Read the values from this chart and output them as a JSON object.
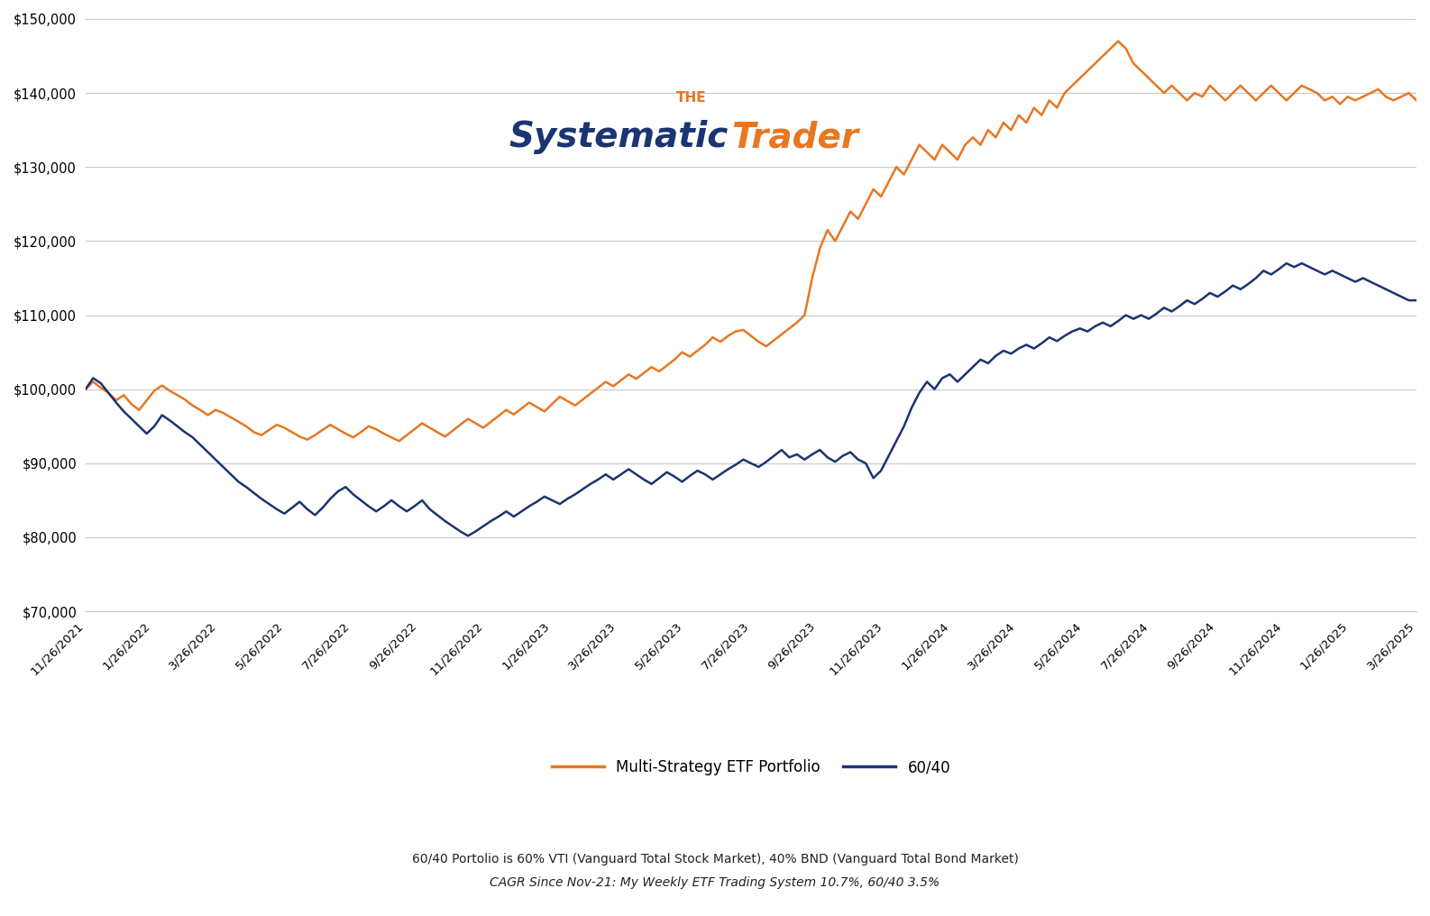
{
  "title_the": "THE",
  "title_systematic": "Systematic",
  "title_trader": "Trader",
  "title_color_the": "#E87722",
  "title_color_systematic": "#1B3472",
  "title_color_trader": "#E87722",
  "orange_color": "#E87722",
  "navy_color": "#1B3472",
  "bg_color": "#FFFFFF",
  "grid_color": "#C8C8C8",
  "ylim": [
    70000,
    150000
  ],
  "yticks": [
    70000,
    80000,
    90000,
    100000,
    110000,
    120000,
    130000,
    140000,
    150000
  ],
  "legend_label_orange": "Multi-Strategy ETF Portfolio",
  "legend_label_navy": "60/40",
  "footnote1": "60/40 Portolio is 60% VTI (Vanguard Total Stock Market), 40% BND (Vanguard Total Bond Market)",
  "footnote2": "CAGR Since Nov-21: My Weekly ETF Trading System 10.7%, 60/40 3.5%",
  "xtick_labels": [
    "11/26/2021",
    "1/26/2022",
    "3/26/2022",
    "5/26/2022",
    "7/26/2022",
    "9/26/2022",
    "11/26/2022",
    "1/26/2023",
    "3/26/2023",
    "5/26/2023",
    "7/26/2023",
    "9/26/2023",
    "11/26/2023",
    "1/26/2024",
    "3/26/2024",
    "5/26/2024",
    "7/26/2024",
    "9/26/2024",
    "11/26/2024",
    "1/26/2025",
    "3/26/2025"
  ],
  "orange_data": [
    100000,
    101000,
    100200,
    99500,
    98500,
    99200,
    98000,
    97200,
    98500,
    99800,
    100500,
    99800,
    99200,
    98600,
    97800,
    97200,
    96500,
    97200,
    96800,
    96200,
    95600,
    95000,
    94200,
    93800,
    94500,
    95200,
    94800,
    94200,
    93600,
    93200,
    93800,
    94500,
    95200,
    94600,
    94000,
    93500,
    94200,
    95000,
    94600,
    94000,
    93500,
    93000,
    93800,
    94600,
    95400,
    94800,
    94200,
    93600,
    94400,
    95200,
    96000,
    95400,
    94800,
    95600,
    96400,
    97200,
    96600,
    97400,
    98200,
    97600,
    97000,
    98000,
    99000,
    98400,
    97800,
    98600,
    99400,
    100200,
    101000,
    100400,
    101200,
    102000,
    101400,
    102200,
    103000,
    102400,
    103200,
    104000,
    105000,
    104400,
    105200,
    106000,
    107000,
    106400,
    107200,
    107800,
    108000,
    107200,
    106400,
    105800,
    106600,
    107400,
    108200,
    109000,
    110000,
    115000,
    119000,
    121500,
    120000,
    122000,
    124000,
    123000,
    125000,
    127000,
    126000,
    128000,
    130000,
    129000,
    131000,
    133000,
    132000,
    131000,
    133000,
    132000,
    131000,
    133000,
    134000,
    133000,
    135000,
    134000,
    136000,
    135000,
    137000,
    136000,
    138000,
    137000,
    139000,
    138000,
    140000,
    141000,
    142000,
    143000,
    144000,
    145000,
    146000,
    147000,
    146000,
    144000,
    143000,
    142000,
    141000,
    140000,
    141000,
    140000,
    139000,
    140000,
    139500,
    141000,
    140000,
    139000,
    140000,
    141000,
    140000,
    139000,
    140000,
    141000,
    140000,
    139000,
    140000,
    141000,
    140500,
    140000,
    139000,
    139500,
    138500,
    139500,
    139000,
    139500,
    140000,
    140500,
    139500,
    139000,
    139500,
    140000,
    139000
  ],
  "navy_data": [
    100000,
    101500,
    100800,
    99500,
    98200,
    97000,
    96000,
    95000,
    94000,
    95000,
    96500,
    95800,
    95000,
    94200,
    93500,
    92500,
    91500,
    90500,
    89500,
    88500,
    87500,
    86800,
    86000,
    85200,
    84500,
    83800,
    83200,
    84000,
    84800,
    83800,
    83000,
    84000,
    85200,
    86200,
    86800,
    85800,
    85000,
    84200,
    83500,
    84200,
    85000,
    84200,
    83500,
    84200,
    85000,
    83800,
    83000,
    82200,
    81500,
    80800,
    80200,
    80800,
    81500,
    82200,
    82800,
    83500,
    82800,
    83500,
    84200,
    84800,
    85500,
    85000,
    84500,
    85200,
    85800,
    86500,
    87200,
    87800,
    88500,
    87800,
    88500,
    89200,
    88500,
    87800,
    87200,
    88000,
    88800,
    88200,
    87500,
    88300,
    89000,
    88500,
    87800,
    88500,
    89200,
    89800,
    90500,
    90000,
    89500,
    90200,
    91000,
    91800,
    90800,
    91200,
    90500,
    91200,
    91800,
    90800,
    90200,
    91000,
    91500,
    90500,
    90000,
    88000,
    89000,
    91000,
    93000,
    95000,
    97500,
    99500,
    101000,
    100000,
    101500,
    102000,
    101000,
    102000,
    103000,
    104000,
    103500,
    104500,
    105200,
    104800,
    105500,
    106000,
    105500,
    106200,
    107000,
    106500,
    107200,
    107800,
    108200,
    107800,
    108500,
    109000,
    108500,
    109200,
    110000,
    109500,
    110000,
    109500,
    110200,
    111000,
    110500,
    111200,
    112000,
    111500,
    112200,
    113000,
    112500,
    113200,
    114000,
    113500,
    114200,
    115000,
    116000,
    115500,
    116200,
    117000,
    116500,
    117000,
    116500,
    116000,
    115500,
    116000,
    115500,
    115000,
    114500,
    115000,
    114500,
    114000,
    113500,
    113000,
    112500,
    112000,
    112000
  ]
}
